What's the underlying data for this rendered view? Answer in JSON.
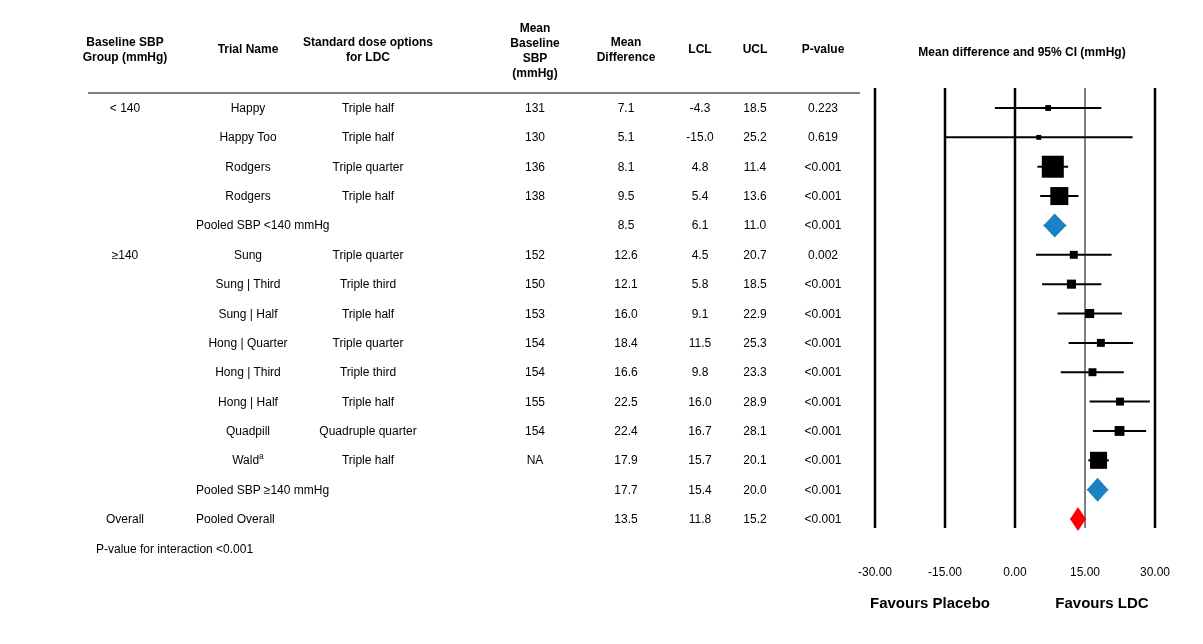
{
  "chart_data": [
    {
      "type": "other",
      "categories": [
        "Baseline SBP Group (mmHg)",
        "Trial Name",
        "Standard dose options for LDC",
        "Mean Baseline SBP (mmHg)",
        "Mean Difference",
        "LCL",
        "UCL",
        "P-value"
      ],
      "cell_labels": [
        [
          "< 140",
          "Happy",
          "Triple half",
          "131",
          "7.1",
          "-4.3",
          "18.5",
          "0.223"
        ],
        [
          null,
          "Happy Too",
          "Triple half",
          "130",
          "5.1",
          "-15.0",
          "25.2",
          "0.619"
        ],
        [
          null,
          "Rodgers",
          "Triple quarter",
          "136",
          "8.1",
          "4.8",
          "11.4",
          "<0.001"
        ],
        [
          null,
          "Rodgers",
          "Triple half",
          "138",
          "9.5",
          "5.4",
          "13.6",
          "<0.001"
        ],
        [
          null,
          "Pooled SBP <140 mmHg",
          null,
          null,
          "8.5",
          "6.1",
          "11.0",
          "<0.001"
        ],
        [
          "≥140",
          "Sung",
          "Triple quarter",
          "152",
          "12.6",
          "4.5",
          "20.7",
          "0.002"
        ],
        [
          null,
          "Sung | Third",
          "Triple third",
          "150",
          "12.1",
          "5.8",
          "18.5",
          "<0.001"
        ],
        [
          null,
          "Sung | Half",
          "Triple half",
          "153",
          "16.0",
          "9.1",
          "22.9",
          "<0.001"
        ],
        [
          null,
          "Hong | Quarter",
          "Triple quarter",
          "154",
          "18.4",
          "11.5",
          "25.3",
          "<0.001"
        ],
        [
          null,
          "Hong | Third",
          "Triple third",
          "154",
          "16.6",
          "9.8",
          "23.3",
          "<0.001"
        ],
        [
          null,
          "Hong | Half",
          "Triple half",
          "155",
          "22.5",
          "16.0",
          "28.9",
          "<0.001"
        ],
        [
          null,
          "Quadpill",
          "Quadruple quarter",
          "154",
          "22.4",
          "16.7",
          "28.1",
          "<0.001"
        ],
        [
          null,
          "Wald$^{a}$",
          "Triple half",
          "NA",
          "17.9",
          "15.7",
          "20.1",
          "<0.001"
        ],
        [
          null,
          "Pooled SBP ≥140 mmHg",
          null,
          null,
          "17.7",
          "15.4",
          "20.0",
          "<0.001"
        ],
        [
          "Overall",
          "Pooled Overall",
          null,
          null,
          "13.5",
          "11.8",
          "15.2",
          "<0.001"
        ]
      ],
      "annotations": [
        "P-value for interaction <0.001"
      ]
    },
    {
      "type": "scatter",
      "title": "Mean difference and 95% CI (mmHg)",
      "orientation": "horizontal",
      "categories": [
        null,
        null,
        null,
        null,
        null,
        null,
        null,
        null,
        null,
        null,
        null,
        null,
        null,
        null,
        null
      ],
      "series": [
        {
          "type": "bubble",
          "marker": "square",
          "color": "#000000",
          "values": [
            7.1,
            5.1,
            8.1,
            9.5,
            null,
            12.6,
            12.1,
            16.0,
            18.4,
            16.6,
            22.5,
            22.4,
            17.9,
            null,
            null
          ],
          "errors": [
            [
              -4.3,
              18.5
            ],
            [
              -15.0,
              25.2
            ],
            [
              4.8,
              11.4
            ],
            [
              5.4,
              13.6
            ],
            null,
            [
              4.5,
              20.7
            ],
            [
              5.8,
              18.5
            ],
            [
              9.1,
              22.9
            ],
            [
              11.5,
              25.3
            ],
            [
              9.8,
              23.3
            ],
            [
              16.0,
              28.9
            ],
            [
              16.7,
              28.1
            ],
            [
              15.7,
              20.1
            ],
            null,
            null
          ],
          "sizes": [
            0.07,
            0.05,
            1,
            0.67,
            null,
            0.13,
            0.17,
            0.17,
            0.13,
            0.13,
            0.13,
            0.2,
            0.6,
            null,
            null
          ]
        },
        {
          "type": "scatter",
          "marker": "diamond",
          "color": "#1a82c4",
          "values": [
            null,
            null,
            null,
            null,
            8.5,
            null,
            null,
            null,
            null,
            null,
            null,
            null,
            null,
            17.7,
            null
          ],
          "errors": [
            null,
            null,
            null,
            null,
            [
              6.1,
              11.0
            ],
            null,
            null,
            null,
            null,
            null,
            null,
            null,
            null,
            [
              15.4,
              20.0
            ],
            null
          ]
        },
        {
          "type": "scatter",
          "marker": "diamond",
          "color": "#ff0000",
          "values": [
            null,
            null,
            null,
            null,
            null,
            null,
            null,
            null,
            null,
            null,
            null,
            null,
            null,
            null,
            13.5
          ],
          "errors": [
            null,
            null,
            null,
            null,
            null,
            null,
            null,
            null,
            null,
            null,
            null,
            null,
            null,
            null,
            [
              11.8,
              15.2
            ]
          ]
        }
      ],
      "xlim": [
        -30,
        30
      ],
      "xticks": [
        {
          "value": -30,
          "label": "-30.00"
        },
        {
          "value": -15,
          "label": "-15.00"
        },
        {
          "value": 0,
          "label": "0.00"
        },
        {
          "value": 15,
          "label": "15.00"
        },
        {
          "value": 30,
          "label": "30.00"
        }
      ],
      "grid": "x",
      "ref_lines": [
        {
          "axis": "x",
          "value": 15
        }
      ],
      "tick_labels": "x",
      "annotations": [
        "Favours Placebo",
        "Favours LDC"
      ]
    }
  ]
}
